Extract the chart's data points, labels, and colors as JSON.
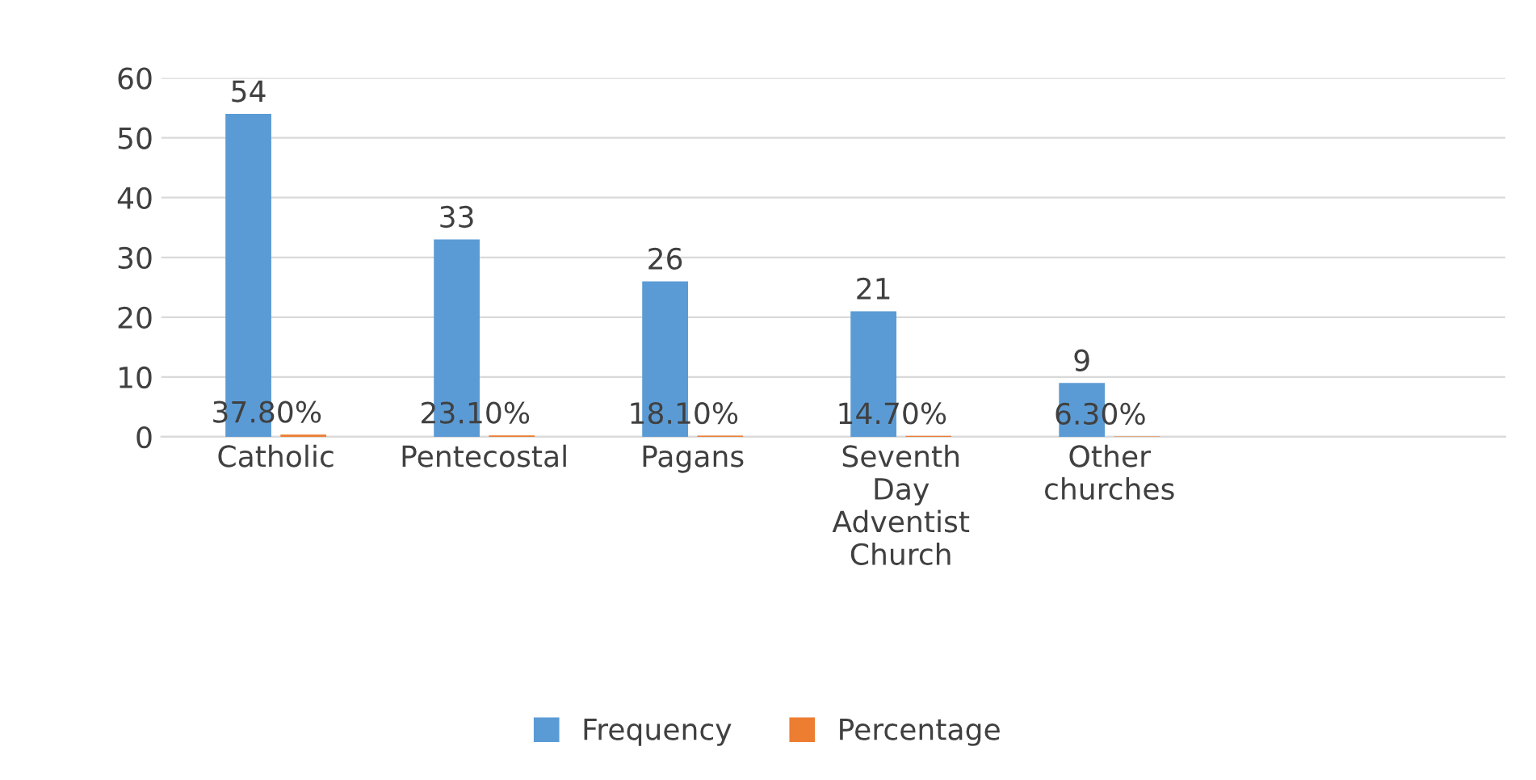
{
  "chart_data": {
    "type": "bar",
    "categories": [
      "Catholic",
      "Pentecostal",
      "Pagans",
      "Seventh\nDay\nAdventist\nChurch",
      "Other\nchurches"
    ],
    "series": [
      {
        "name": "Frequency",
        "color": "#5b9bd5",
        "values": [
          54,
          33,
          26,
          21,
          9
        ],
        "value_labels": [
          "54",
          "33",
          "26",
          "21",
          "9"
        ]
      },
      {
        "name": "Percentage",
        "color": "#ed7d31",
        "values": [
          0.378,
          0.231,
          0.181,
          0.147,
          0.063
        ],
        "value_labels": [
          "37.80%",
          "23.10%",
          "18.10%",
          "14.70%",
          "6.30%"
        ]
      }
    ],
    "ylim": [
      0,
      60
    ],
    "yticks": [
      0,
      10,
      20,
      30,
      40,
      50,
      60
    ],
    "grid": "y",
    "legend": "bottom"
  }
}
